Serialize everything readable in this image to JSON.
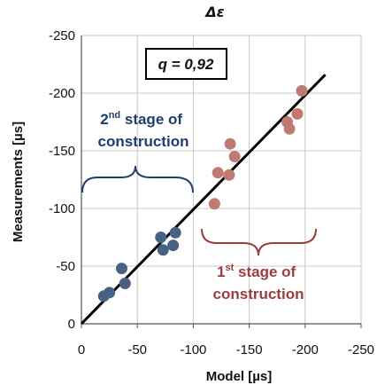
{
  "chart_data": {
    "type": "scatter",
    "title": "Δε",
    "xlabel": "Model [µs]",
    "ylabel": "Measurements [µs]",
    "xlim": [
      0,
      -250
    ],
    "ylim": [
      0,
      -250
    ],
    "x_ticks": [
      "0",
      "-50",
      "-100",
      "-150",
      "-200",
      "-250"
    ],
    "y_ticks": [
      "0",
      "-50",
      "-100",
      "-150",
      "-200",
      "-250"
    ],
    "grid": true,
    "annotation_box": "q = 0,92",
    "fit_line": {
      "x": [
        0,
        -218
      ],
      "y": [
        0,
        -216
      ]
    },
    "series": [
      {
        "color": "#4a6282",
        "points": [
          {
            "x": -20,
            "y": -24
          },
          {
            "x": -25,
            "y": -27
          },
          {
            "x": -36,
            "y": -48
          },
          {
            "x": -39,
            "y": -35
          },
          {
            "x": -71,
            "y": -75
          },
          {
            "x": -73,
            "y": -64
          },
          {
            "x": -82,
            "y": -68
          },
          {
            "x": -84,
            "y": -79
          }
        ]
      },
      {
        "color": "#c07a74",
        "points": [
          {
            "x": -119,
            "y": -104
          },
          {
            "x": -122,
            "y": -131
          },
          {
            "x": -132,
            "y": -129
          },
          {
            "x": -133,
            "y": -156
          },
          {
            "x": -137,
            "y": -145
          },
          {
            "x": -184,
            "y": -175
          },
          {
            "x": -186,
            "y": -169
          },
          {
            "x": -193,
            "y": -182
          },
          {
            "x": -197,
            "y": -202
          }
        ]
      }
    ],
    "labels": [
      {
        "name": "2nd-stage-label",
        "ordinal": "2",
        "suffix": "nd",
        "line1_rest": " stage of",
        "line2": "construction",
        "color": "#1f3e6b"
      },
      {
        "name": "1st-stage-label",
        "ordinal": "1",
        "suffix": "st",
        "line1_rest": " stage of",
        "line2": "construction",
        "color": "#9b3d3d"
      }
    ]
  }
}
